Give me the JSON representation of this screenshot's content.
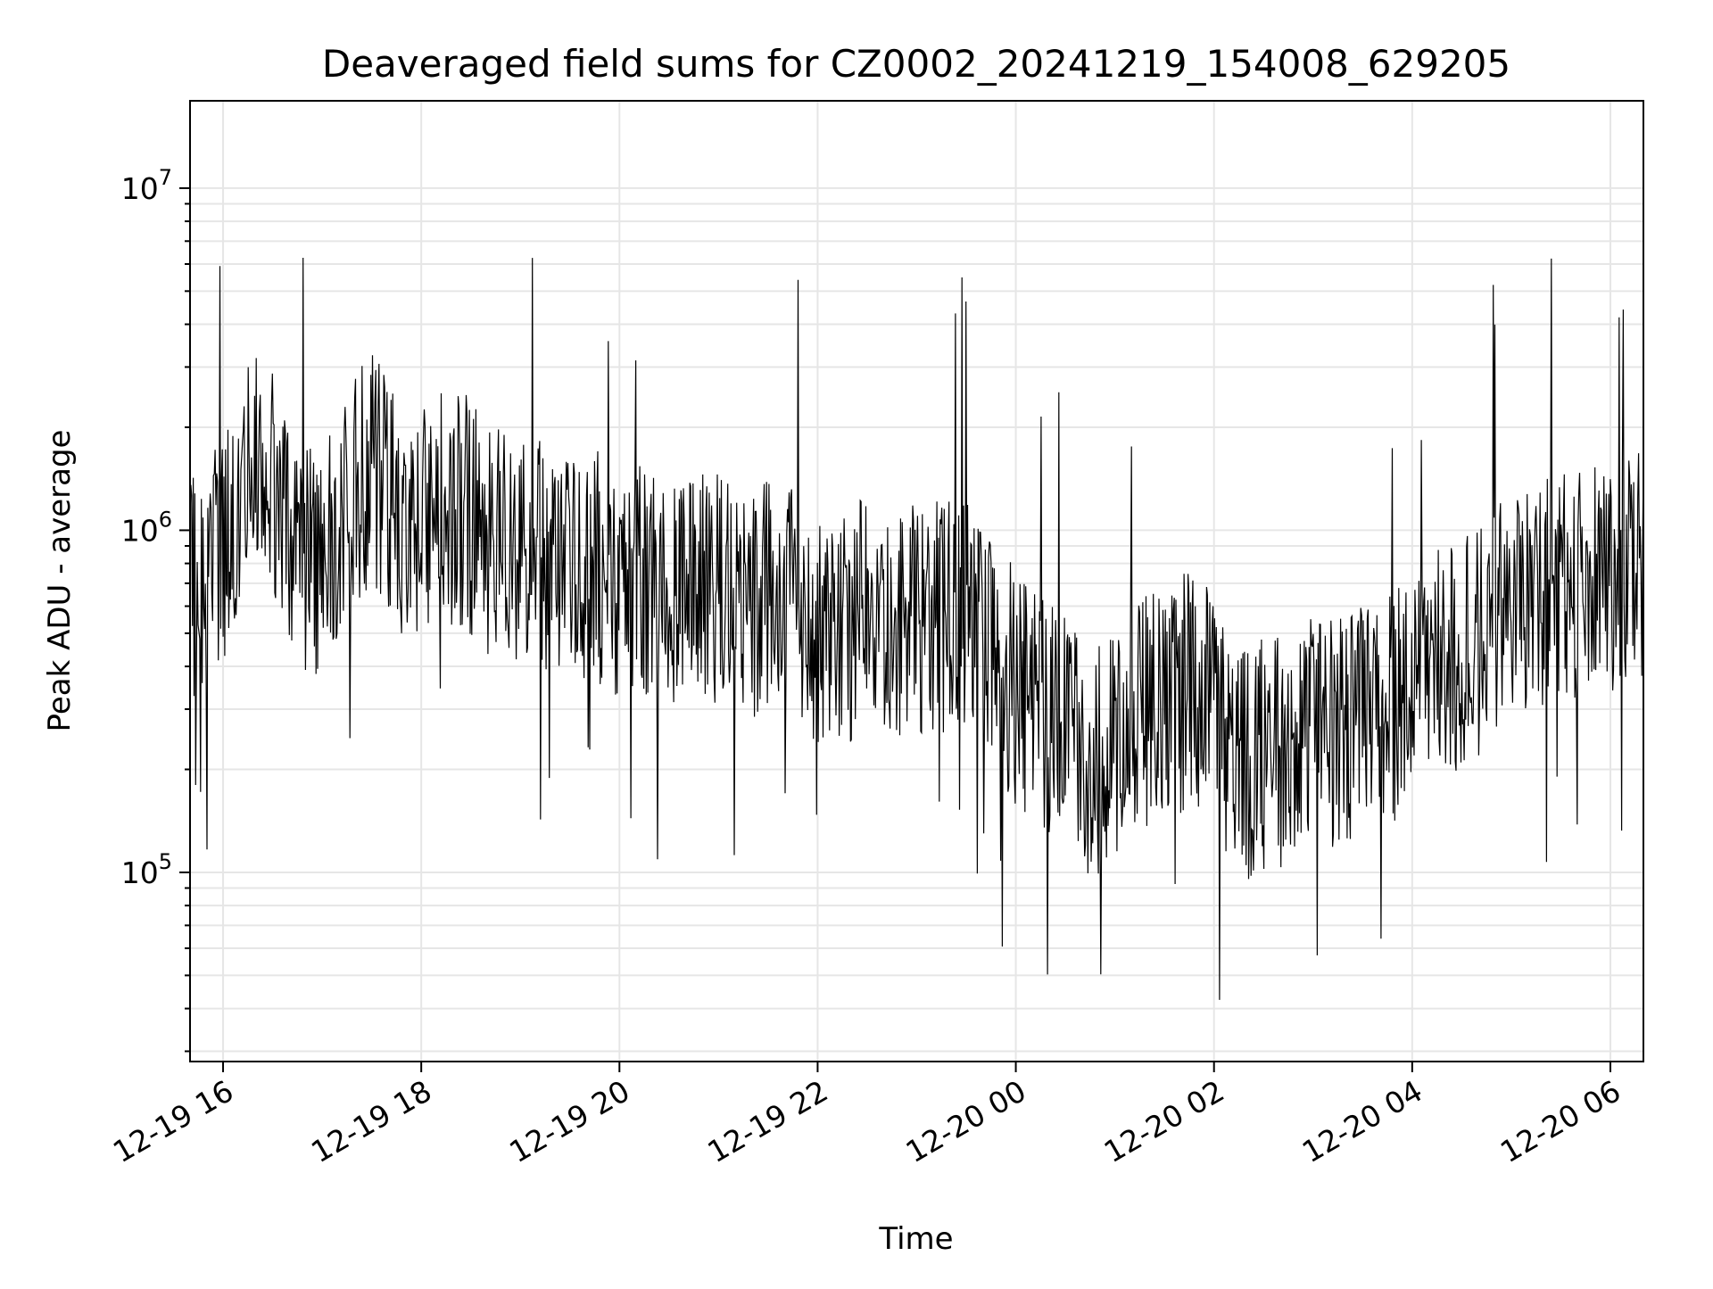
{
  "chart_data": {
    "type": "line",
    "title": "Deaveraged field sums for CZ0002_20241219_154008_629205",
    "xlabel": "Time",
    "ylabel": "Peak ADU - average",
    "yscale": "log",
    "xlim": [
      "2024-12-19 15:40",
      "2024-12-20 06:20"
    ],
    "ylim": [
      28000,
      18000000
    ],
    "x_ticks": [
      {
        "value": "2024-12-19 16:00",
        "label": "12-19 16"
      },
      {
        "value": "2024-12-19 18:00",
        "label": "12-19 18"
      },
      {
        "value": "2024-12-19 20:00",
        "label": "12-19 20"
      },
      {
        "value": "2024-12-19 22:00",
        "label": "12-19 22"
      },
      {
        "value": "2024-12-20 00:00",
        "label": "12-20 00"
      },
      {
        "value": "2024-12-20 02:00",
        "label": "12-20 02"
      },
      {
        "value": "2024-12-20 04:00",
        "label": "12-20 04"
      },
      {
        "value": "2024-12-20 06:00",
        "label": "12-20 06"
      }
    ],
    "y_ticks": [
      {
        "value": 100000,
        "base": "10",
        "exp": "5"
      },
      {
        "value": 1000000,
        "base": "10",
        "exp": "6"
      },
      {
        "value": 10000000,
        "base": "10",
        "exp": "7"
      }
    ],
    "grid": true,
    "line_color": "#000000",
    "grid_color": "#e6e6e6",
    "series": [
      {
        "x": [
          "2024-12-19 15:40",
          "2024-12-19 16:00",
          "2024-12-19 16:15",
          "2024-12-19 16:30",
          "2024-12-19 16:45",
          "2024-12-19 17:00",
          "2024-12-19 17:15",
          "2024-12-19 17:30",
          "2024-12-19 17:45",
          "2024-12-19 18:00",
          "2024-12-19 18:15",
          "2024-12-19 18:30",
          "2024-12-19 18:45",
          "2024-12-19 19:00",
          "2024-12-19 19:15",
          "2024-12-19 19:30",
          "2024-12-19 19:45",
          "2024-12-19 20:00",
          "2024-12-19 20:15",
          "2024-12-19 20:30",
          "2024-12-19 20:45",
          "2024-12-19 21:00",
          "2024-12-19 21:15",
          "2024-12-19 21:30",
          "2024-12-19 21:45",
          "2024-12-19 22:00",
          "2024-12-19 22:15",
          "2024-12-19 22:30",
          "2024-12-19 22:45",
          "2024-12-19 23:00",
          "2024-12-19 23:15",
          "2024-12-19 23:30",
          "2024-12-19 23:45",
          "2024-12-20 00:00",
          "2024-12-20 00:15",
          "2024-12-20 00:30",
          "2024-12-20 00:45",
          "2024-12-20 01:00",
          "2024-12-20 01:15",
          "2024-12-20 01:30",
          "2024-12-20 01:45",
          "2024-12-20 02:00",
          "2024-12-20 02:15",
          "2024-12-20 02:30",
          "2024-12-20 02:45",
          "2024-12-20 03:00",
          "2024-12-20 03:15",
          "2024-12-20 03:30",
          "2024-12-20 03:45",
          "2024-12-20 04:00",
          "2024-12-20 04:15",
          "2024-12-20 04:30",
          "2024-12-20 04:45",
          "2024-12-20 05:00",
          "2024-12-20 05:15",
          "2024-12-20 05:30",
          "2024-12-20 05:45",
          "2024-12-20 06:00",
          "2024-12-20 06:20"
        ],
        "y": [
          700000,
          850000,
          1600000,
          1300000,
          900000,
          800000,
          1100000,
          1600000,
          1100000,
          1000000,
          1200000,
          1100000,
          900000,
          900000,
          800000,
          750000,
          800000,
          700000,
          700000,
          650000,
          650000,
          700000,
          600000,
          650000,
          600000,
          500000,
          500000,
          600000,
          550000,
          550000,
          550000,
          600000,
          450000,
          350000,
          300000,
          250000,
          200000,
          250000,
          300000,
          300000,
          350000,
          300000,
          200000,
          220000,
          230000,
          250000,
          260000,
          280000,
          300000,
          350000,
          400000,
          450000,
          500000,
          600000,
          650000,
          650000,
          700000,
          750000,
          800000
        ]
      }
    ]
  }
}
